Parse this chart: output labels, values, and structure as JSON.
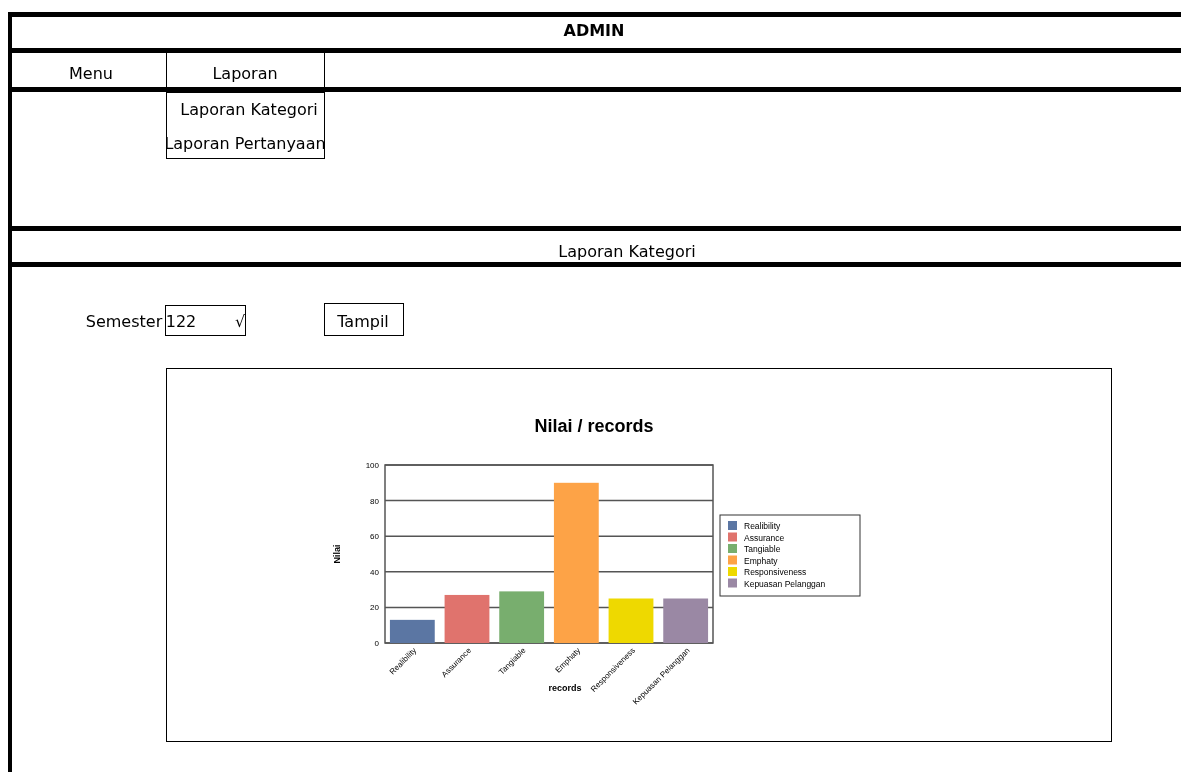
{
  "chart_data": {
    "type": "bar",
    "title": "Nilai / records",
    "xlabel": "records",
    "ylabel": "Nilai",
    "categories": [
      "Realibility",
      "Assurance",
      "Tangiable",
      "Emphaty",
      "Responsiveness",
      "Kepuasan Pelanggan"
    ],
    "series": [
      {
        "name": "Realibility",
        "color": "#5b76a3",
        "values": [
          13,
          null,
          null,
          null,
          null,
          null
        ]
      },
      {
        "name": "Assurance",
        "color": "#e0736d",
        "values": [
          null,
          27,
          null,
          null,
          null,
          null
        ]
      },
      {
        "name": "Tangiable",
        "color": "#78ae6e",
        "values": [
          null,
          null,
          29,
          null,
          null,
          null
        ]
      },
      {
        "name": "Emphaty",
        "color": "#fda347",
        "values": [
          null,
          null,
          null,
          90,
          null,
          null
        ]
      },
      {
        "name": "Responsiveness",
        "color": "#eed900",
        "values": [
          null,
          null,
          null,
          null,
          25,
          null
        ]
      },
      {
        "name": "Kepuasan Pelanggan",
        "color": "#9a88a4",
        "values": [
          null,
          null,
          null,
          null,
          null,
          25
        ]
      }
    ],
    "ylim": [
      0,
      100
    ],
    "yticks": [
      0,
      20,
      40,
      60,
      80,
      100
    ],
    "grid": "y",
    "legend": "right",
    "annotations": [
      "ADMIN",
      "Menu",
      "Laporan",
      "Laporan Kategori",
      "Laporan Pertanyaan",
      "Laporan Kategori",
      "Semester",
      "122",
      "√",
      "Tampil"
    ]
  }
}
